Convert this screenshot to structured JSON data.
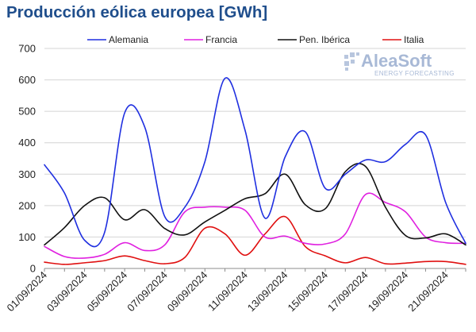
{
  "chart_data": {
    "type": "line",
    "title": "Producción eólica europea [GWh]",
    "ylim": [
      0,
      700
    ],
    "yticks": [
      0,
      100,
      200,
      300,
      400,
      500,
      600,
      700
    ],
    "xtick_labels": [
      "01/09/2024",
      "03/09/2024",
      "05/09/2024",
      "07/09/2024",
      "09/09/2024",
      "11/09/2024",
      "13/09/2024",
      "15/09/2024",
      "17/09/2024",
      "19/09/2024",
      "21/09/2024"
    ],
    "grid": "horizontal",
    "legend_position": "top",
    "series": [
      {
        "name": "Alemania",
        "color": "#1f2fe0",
        "values": [
          330,
          240,
          90,
          115,
          495,
          450,
          165,
          195,
          340,
          605,
          440,
          160,
          355,
          435,
          255,
          300,
          345,
          340,
          395,
          425,
          210,
          80
        ]
      },
      {
        "name": "Francia",
        "color": "#e020e0",
        "values": [
          70,
          38,
          33,
          45,
          82,
          57,
          75,
          180,
          195,
          195,
          185,
          100,
          103,
          80,
          78,
          110,
          235,
          210,
          180,
          100,
          82,
          80
        ]
      },
      {
        "name": "Pen. Ibérica",
        "color": "#111111",
        "values": [
          75,
          130,
          200,
          225,
          155,
          187,
          127,
          107,
          148,
          185,
          222,
          238,
          300,
          203,
          190,
          308,
          325,
          195,
          105,
          97,
          110,
          75
        ]
      },
      {
        "name": "Italia",
        "color": "#e01010",
        "values": [
          20,
          13,
          18,
          25,
          40,
          25,
          15,
          35,
          128,
          110,
          42,
          110,
          165,
          70,
          40,
          18,
          35,
          15,
          17,
          22,
          22,
          13
        ]
      }
    ]
  },
  "watermark": {
    "brand": "AleaSoft",
    "tagline": "ENERGY FORECASTING"
  }
}
